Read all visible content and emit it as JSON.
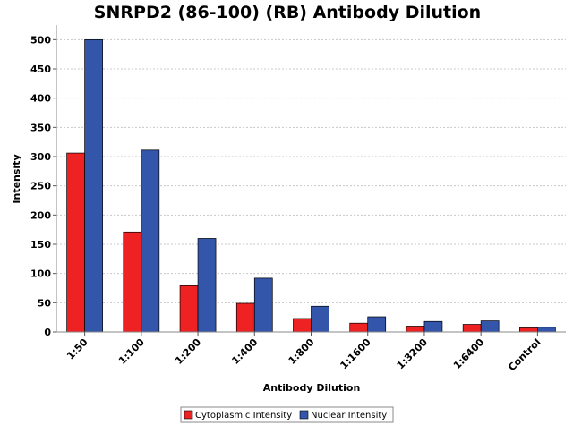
{
  "chart_data": {
    "type": "bar",
    "title": "SNRPD2 (86-100) (RB) Antibody Dilution",
    "xlabel": "Antibody Dilution",
    "ylabel": "Intensity",
    "categories": [
      "1:50",
      "1:100",
      "1:200",
      "1:400",
      "1:800",
      "1:1600",
      "1:3200",
      "1:6400",
      "Control"
    ],
    "ylim": [
      0,
      525
    ],
    "yticks": [
      0,
      50,
      100,
      150,
      200,
      250,
      300,
      350,
      400,
      450,
      500
    ],
    "grid": true,
    "legend_position": "bottom",
    "series": [
      {
        "name": "Cytoplasmic Intensity",
        "color": "#ee2222",
        "values": [
          306,
          171,
          79,
          49,
          23,
          15,
          10,
          13,
          7
        ]
      },
      {
        "name": "Nuclear Intensity",
        "color": "#3355aa",
        "values": [
          500,
          311,
          160,
          92,
          44,
          26,
          18,
          19,
          8
        ]
      }
    ]
  }
}
